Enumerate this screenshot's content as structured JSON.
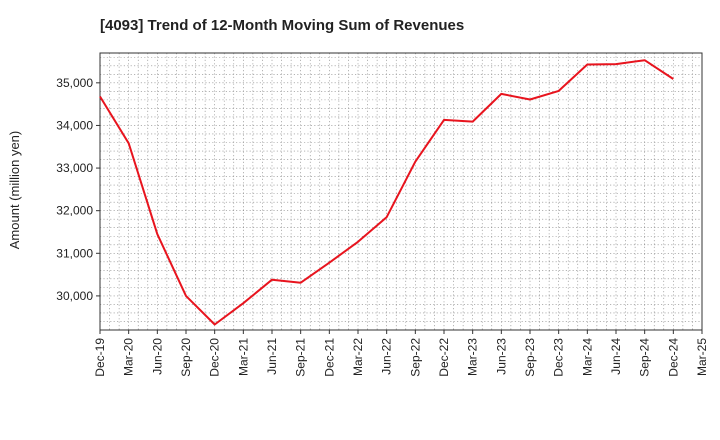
{
  "chart_data": {
    "type": "line",
    "title": "[4093]  Trend of 12-Month Moving Sum of Revenues",
    "xlabel": "",
    "ylabel": "Amount (million yen)",
    "categories": [
      "Dec-19",
      "Mar-20",
      "Jun-20",
      "Sep-20",
      "Dec-20",
      "Mar-21",
      "Jun-21",
      "Sep-21",
      "Dec-21",
      "Mar-22",
      "Jun-22",
      "Sep-22",
      "Dec-22",
      "Mar-23",
      "Jun-23",
      "Sep-23",
      "Dec-23",
      "Mar-24",
      "Jun-24",
      "Sep-24",
      "Dec-24",
      "Mar-25"
    ],
    "series": [
      {
        "name": "",
        "color": "#e8141e",
        "values": [
          34680,
          33580,
          31450,
          30000,
          29330,
          29830,
          30380,
          30310,
          30780,
          31270,
          31850,
          33150,
          34130,
          34090,
          34740,
          34610,
          34810,
          35430,
          35440,
          35530,
          35090,
          null
        ]
      }
    ],
    "yticks": [
      30000,
      31000,
      32000,
      33000,
      34000,
      35000
    ],
    "ytick_labels": [
      "30,000",
      "31,000",
      "32,000",
      "33,000",
      "34,000",
      "35,000"
    ],
    "ylim": [
      29200,
      35700
    ],
    "grid": true,
    "legend": "none"
  }
}
